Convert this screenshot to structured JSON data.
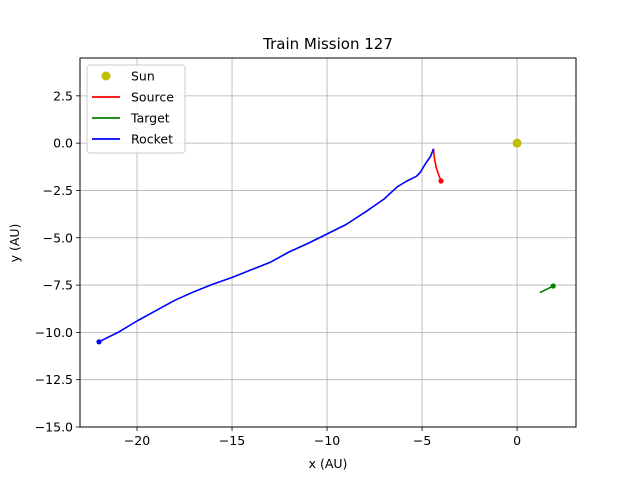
{
  "chart_data": {
    "type": "line",
    "title": "Train Mission 127",
    "xlabel": "x (AU)",
    "ylabel": "y (AU)",
    "xlim": [
      -23.0,
      3.1
    ],
    "ylim": [
      -15.0,
      4.5
    ],
    "xticks": [
      -20,
      -15,
      -10,
      -5,
      0
    ],
    "xtick_labels": [
      "−20",
      "−15",
      "−10",
      "−5",
      "0"
    ],
    "yticks": [
      -15.0,
      -12.5,
      -10.0,
      -7.5,
      -5.0,
      -2.5,
      0.0,
      2.5
    ],
    "ytick_labels": [
      "−15.0",
      "−12.5",
      "−10.0",
      "−7.5",
      "−5.0",
      "−2.5",
      "0.0",
      "2.5"
    ],
    "grid": true,
    "legend_position": "top-left",
    "series": [
      {
        "name": "Sun",
        "kind": "marker",
        "color": "#bfbf00",
        "points": [
          [
            0.0,
            0.0
          ]
        ]
      },
      {
        "name": "Source",
        "kind": "line",
        "color": "#ff0000",
        "points": [
          [
            -4.4,
            -0.3
          ],
          [
            -4.35,
            -0.8
          ],
          [
            -4.25,
            -1.3
          ],
          [
            -4.12,
            -1.7
          ],
          [
            -4.0,
            -2.0
          ]
        ],
        "end_marker": [
          -4.0,
          -2.0
        ]
      },
      {
        "name": "Target",
        "kind": "line",
        "color": "#008000",
        "points": [
          [
            1.2,
            -7.9
          ],
          [
            1.5,
            -7.75
          ],
          [
            1.9,
            -7.55
          ]
        ],
        "end_marker": [
          1.9,
          -7.55
        ]
      },
      {
        "name": "Rocket",
        "kind": "line",
        "color": "#0000ff",
        "points": [
          [
            -22.0,
            -10.5
          ],
          [
            -21.0,
            -10.0
          ],
          [
            -20.0,
            -9.4
          ],
          [
            -19.0,
            -8.85
          ],
          [
            -18.0,
            -8.3
          ],
          [
            -17.0,
            -7.85
          ],
          [
            -16.0,
            -7.45
          ],
          [
            -15.0,
            -7.1
          ],
          [
            -14.0,
            -6.7
          ],
          [
            -13.0,
            -6.3
          ],
          [
            -12.0,
            -5.75
          ],
          [
            -11.0,
            -5.3
          ],
          [
            -10.0,
            -4.8
          ],
          [
            -9.0,
            -4.3
          ],
          [
            -8.0,
            -3.65
          ],
          [
            -7.0,
            -2.95
          ],
          [
            -6.3,
            -2.3
          ],
          [
            -5.8,
            -2.0
          ],
          [
            -5.3,
            -1.75
          ],
          [
            -5.1,
            -1.55
          ],
          [
            -4.8,
            -1.05
          ],
          [
            -4.55,
            -0.7
          ],
          [
            -4.4,
            -0.3
          ]
        ],
        "start_marker": [
          -22.0,
          -10.5
        ]
      }
    ]
  }
}
